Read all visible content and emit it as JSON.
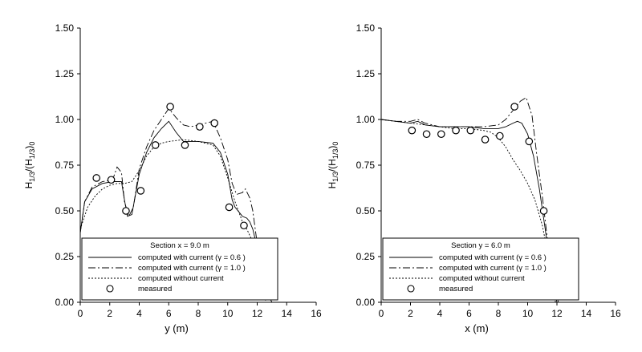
{
  "chart_data": [
    {
      "type": "line",
      "xlabel": "y (m)",
      "ylabel": "H1/3/(H1/3)0",
      "xlim": [
        0,
        16
      ],
      "ylim": [
        0,
        1.5
      ],
      "xticks": [
        "0",
        "2",
        "4",
        "6",
        "8",
        "10",
        "12",
        "14",
        "16"
      ],
      "yticks": [
        "0.00",
        "0.25",
        "0.50",
        "0.75",
        "1.00",
        "1.25",
        "1.50"
      ],
      "legend": {
        "title": "Section x = 9.0 m",
        "entries": [
          "computed with current (γ = 0.6 )",
          "computed with current (γ = 1.0 )",
          "computed without current",
          "measured"
        ]
      },
      "series": [
        {
          "name": "computed with current (γ = 0.6 )",
          "style": "solid",
          "x": [
            0,
            0.3,
            0.8,
            1.5,
            2.2,
            2.8,
            3.0,
            3.2,
            3.5,
            4.0,
            4.5,
            5.0,
            5.5,
            6.0,
            6.5,
            7.0,
            8.0,
            9.0,
            9.5,
            10.0,
            10.3,
            10.5,
            10.8,
            11.0,
            11.3,
            11.5,
            11.7,
            12.0,
            12.3,
            12.6,
            13.0
          ],
          "y": [
            0.38,
            0.55,
            0.62,
            0.65,
            0.66,
            0.66,
            0.56,
            0.47,
            0.48,
            0.7,
            0.82,
            0.9,
            0.95,
            0.99,
            0.93,
            0.88,
            0.88,
            0.87,
            0.82,
            0.7,
            0.56,
            0.52,
            0.49,
            0.47,
            0.46,
            0.44,
            0.4,
            0.3,
            0.16,
            0.06,
            0.0
          ]
        },
        {
          "name": "computed with current (γ = 1.0 )",
          "style": "dashdot",
          "x": [
            0,
            0.3,
            0.8,
            1.5,
            2.2,
            2.5,
            2.8,
            3.0,
            3.3,
            3.6,
            4.0,
            4.5,
            5.0,
            5.5,
            6.0,
            6.5,
            7.0,
            7.5,
            8.0,
            8.5,
            9.0,
            9.5,
            10.0,
            10.3,
            10.6,
            11.0,
            11.2,
            11.5,
            11.7,
            12.0,
            12.3,
            12.5
          ],
          "y": [
            0.38,
            0.55,
            0.63,
            0.66,
            0.67,
            0.74,
            0.71,
            0.55,
            0.47,
            0.52,
            0.73,
            0.85,
            0.94,
            1.0,
            1.06,
            1.01,
            0.97,
            0.96,
            0.97,
            0.98,
            0.99,
            0.9,
            0.78,
            0.65,
            0.59,
            0.6,
            0.62,
            0.57,
            0.5,
            0.32,
            0.14,
            0.02
          ]
        },
        {
          "name": "computed without current",
          "style": "dotted",
          "x": [
            0,
            0.5,
            1.0,
            1.5,
            2.0,
            2.5,
            3.0,
            3.5,
            4.0,
            4.5,
            5.0,
            5.5,
            6.0,
            7.0,
            8.0,
            9.0,
            9.5,
            10.0,
            10.5,
            11.0,
            11.3,
            11.7,
            12.0,
            12.3,
            12.6
          ],
          "y": [
            0.4,
            0.52,
            0.58,
            0.62,
            0.64,
            0.65,
            0.65,
            0.66,
            0.72,
            0.8,
            0.85,
            0.87,
            0.88,
            0.89,
            0.88,
            0.86,
            0.8,
            0.68,
            0.55,
            0.44,
            0.4,
            0.33,
            0.22,
            0.1,
            0.0
          ]
        },
        {
          "name": "measured",
          "style": "marker",
          "x": [
            1.1,
            2.1,
            3.1,
            4.1,
            5.1,
            6.1,
            7.1,
            8.1,
            9.1,
            10.1,
            11.1
          ],
          "y": [
            0.68,
            0.67,
            0.5,
            0.61,
            0.86,
            1.07,
            0.86,
            0.96,
            0.98,
            0.52,
            0.42
          ]
        }
      ]
    },
    {
      "type": "line",
      "xlabel": "x (m)",
      "ylabel": "H1/3/(H1/3)0",
      "xlim": [
        0,
        16
      ],
      "ylim": [
        0,
        1.5
      ],
      "xticks": [
        "0",
        "2",
        "4",
        "6",
        "8",
        "10",
        "12",
        "14",
        "16"
      ],
      "yticks": [
        "0.00",
        "0.25",
        "0.50",
        "0.75",
        "1.00",
        "1.25",
        "1.50"
      ],
      "legend": {
        "title": "Section y = 6.0 m",
        "entries": [
          "computed with current (γ = 0.6 )",
          "computed with current (γ = 1.0 )",
          "computed without current",
          "measured"
        ]
      },
      "series": [
        {
          "name": "computed with current (γ = 0.6 )",
          "style": "solid",
          "x": [
            0,
            1,
            2,
            2.5,
            3,
            4,
            5,
            6,
            7,
            8,
            8.5,
            9,
            9.3,
            9.6,
            10.0,
            10.4,
            10.8,
            11.2,
            11.5,
            11.8,
            12.0
          ],
          "y": [
            1.0,
            0.99,
            0.98,
            0.99,
            0.97,
            0.96,
            0.96,
            0.96,
            0.95,
            0.95,
            0.96,
            0.98,
            0.99,
            0.98,
            0.92,
            0.8,
            0.62,
            0.4,
            0.22,
            0.08,
            0.0
          ]
        },
        {
          "name": "computed with current (γ = 1.0 )",
          "style": "dashdot",
          "x": [
            0,
            1,
            2,
            2.5,
            3,
            4,
            5,
            6,
            7,
            8,
            8.5,
            9.0,
            9.5,
            9.9,
            10.3,
            10.6,
            11.0,
            11.3,
            11.6,
            11.9,
            12.1
          ],
          "y": [
            1.0,
            0.99,
            0.99,
            1.0,
            0.98,
            0.96,
            0.96,
            0.96,
            0.96,
            0.97,
            1.0,
            1.05,
            1.1,
            1.12,
            1.02,
            0.82,
            0.58,
            0.38,
            0.2,
            0.06,
            0.0
          ]
        },
        {
          "name": "computed without current",
          "style": "dotted",
          "x": [
            0,
            1,
            2,
            3,
            4,
            5,
            6,
            7,
            7.5,
            8.0,
            8.5,
            9.0,
            9.5,
            10.0,
            10.5,
            11.0,
            11.3,
            11.6,
            11.9
          ],
          "y": [
            1.0,
            0.99,
            0.98,
            0.97,
            0.96,
            0.95,
            0.95,
            0.94,
            0.93,
            0.9,
            0.85,
            0.78,
            0.72,
            0.65,
            0.56,
            0.42,
            0.3,
            0.15,
            0.0
          ]
        },
        {
          "name": "measured",
          "style": "marker",
          "x": [
            2.1,
            3.1,
            4.1,
            5.1,
            6.1,
            7.1,
            8.1,
            9.1,
            10.1,
            11.1
          ],
          "y": [
            0.94,
            0.92,
            0.92,
            0.94,
            0.94,
            0.89,
            0.91,
            1.07,
            0.88,
            0.5
          ]
        }
      ]
    }
  ]
}
